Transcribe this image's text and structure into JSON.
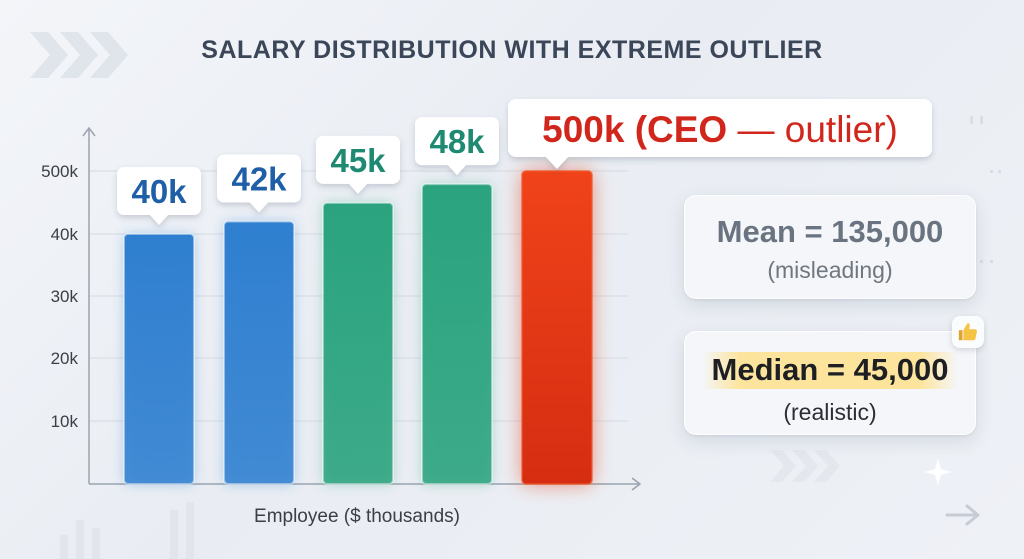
{
  "chart_data": {
    "type": "bar",
    "title": "SALARY DISTRIBUTION WITH EXTREME OUTLIER",
    "xlabel": "Employee ($ thousands)",
    "ylabel": "",
    "yticks": [
      "10k",
      "20k",
      "30k",
      "40k",
      "500k"
    ],
    "categories": [
      "",
      "",
      "",
      "",
      ""
    ],
    "values": [
      40,
      42,
      45,
      48,
      500
    ],
    "data_labels": [
      "40k",
      "42k",
      "45k",
      "48k",
      "500k (CEO — outlier)"
    ],
    "bar_colors": [
      "#2f7fd0",
      "#2f7fd0",
      "#2aa37e",
      "#2aa37e",
      "#e33a12"
    ],
    "label_colors": [
      "#1f5fa8",
      "#1f5fa8",
      "#1e8a72",
      "#1e8a72",
      "#d1261b"
    ],
    "grid": true
  },
  "cards": {
    "mean": {
      "value": "Mean = 135,000",
      "note": "(misleading)"
    },
    "median": {
      "value": "Median = 45,000",
      "note": "(realistic)"
    }
  },
  "icons": {
    "median_badge": "thumbs-up-icon"
  }
}
